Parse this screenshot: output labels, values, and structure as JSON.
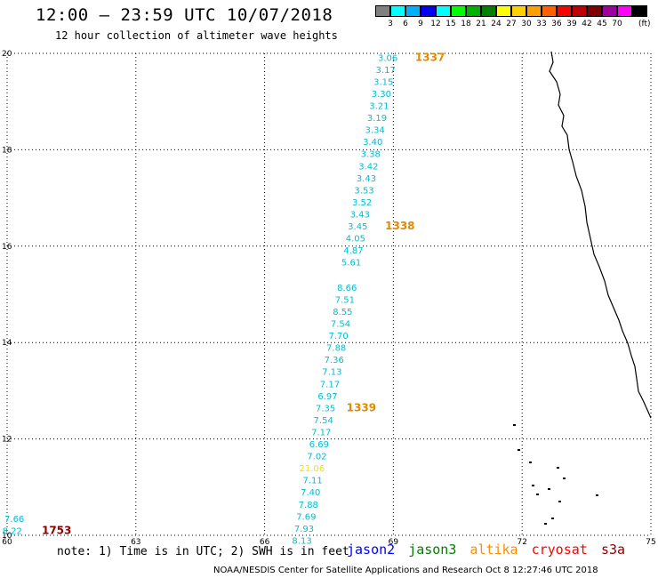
{
  "header": {
    "title": "12:00 – 23:59 UTC 10/07/2018",
    "subtitle": "12 hour collection of altimeter wave heights"
  },
  "legend": {
    "colors": [
      "#808080",
      "#00ffff",
      "#00b0ff",
      "#0000ff",
      "#00ffff",
      "#00ff00",
      "#00b000",
      "#008000",
      "#ffff00",
      "#ffd000",
      "#ffa000",
      "#ff6000",
      "#ff0000",
      "#c00000",
      "#800000",
      "#a000a0",
      "#ff00ff",
      "#000000"
    ],
    "labels": [
      "3",
      "6",
      "9",
      "12",
      "15",
      "18",
      "21",
      "24",
      "27",
      "30",
      "33",
      "36",
      "39",
      "42",
      "45",
      "70"
    ],
    "unit": "(ft)"
  },
  "map": {
    "lon_min": 60,
    "lon_max": 75,
    "lat_min": 10,
    "lat_max": 20,
    "x_ticks": [
      60,
      63,
      66,
      69,
      72,
      75
    ],
    "y_ticks": [
      10,
      12,
      14,
      16,
      18,
      20
    ],
    "colors": {
      "cyan": "#00bcd4",
      "yellow": "#e8e800",
      "orange": "#e08a00",
      "darkred": "#8b0000",
      "grid": "#000000",
      "coast": "#000000"
    }
  },
  "observations": [
    {
      "lat": 19.92,
      "lon": 69.1,
      "value": "3.06",
      "color": "cyan"
    },
    {
      "lat": 19.67,
      "lon": 69.05,
      "value": "3.17",
      "color": "cyan"
    },
    {
      "lat": 19.42,
      "lon": 69.0,
      "value": "3.15",
      "color": "cyan"
    },
    {
      "lat": 19.17,
      "lon": 68.95,
      "value": "3.30",
      "color": "cyan"
    },
    {
      "lat": 18.92,
      "lon": 68.9,
      "value": "3.21",
      "color": "cyan"
    },
    {
      "lat": 18.67,
      "lon": 68.85,
      "value": "3.19",
      "color": "cyan"
    },
    {
      "lat": 18.42,
      "lon": 68.8,
      "value": "3.34",
      "color": "cyan"
    },
    {
      "lat": 18.17,
      "lon": 68.75,
      "value": "3.40",
      "color": "cyan"
    },
    {
      "lat": 17.92,
      "lon": 68.7,
      "value": "3.38",
      "color": "cyan"
    },
    {
      "lat": 17.67,
      "lon": 68.65,
      "value": "3.42",
      "color": "cyan"
    },
    {
      "lat": 17.42,
      "lon": 68.6,
      "value": "3.43",
      "color": "cyan"
    },
    {
      "lat": 17.17,
      "lon": 68.55,
      "value": "3.53",
      "color": "cyan"
    },
    {
      "lat": 16.92,
      "lon": 68.5,
      "value": "3.52",
      "color": "cyan"
    },
    {
      "lat": 16.67,
      "lon": 68.45,
      "value": "3.43",
      "color": "cyan"
    },
    {
      "lat": 16.42,
      "lon": 68.4,
      "value": "3.45",
      "color": "cyan"
    },
    {
      "lat": 16.17,
      "lon": 68.35,
      "value": "4.05",
      "color": "cyan"
    },
    {
      "lat": 15.92,
      "lon": 68.3,
      "value": "4.87",
      "color": "cyan"
    },
    {
      "lat": 15.67,
      "lon": 68.25,
      "value": "5.61",
      "color": "cyan"
    },
    {
      "lat": 15.15,
      "lon": 68.15,
      "value": "8.66",
      "color": "cyan"
    },
    {
      "lat": 14.9,
      "lon": 68.1,
      "value": "7.51",
      "color": "cyan"
    },
    {
      "lat": 14.65,
      "lon": 68.05,
      "value": "8.55",
      "color": "cyan"
    },
    {
      "lat": 14.4,
      "lon": 68.0,
      "value": "7.54",
      "color": "cyan"
    },
    {
      "lat": 14.15,
      "lon": 67.95,
      "value": "7.70",
      "color": "cyan"
    },
    {
      "lat": 13.9,
      "lon": 67.9,
      "value": "7.88",
      "color": "cyan"
    },
    {
      "lat": 13.65,
      "lon": 67.85,
      "value": "7.36",
      "color": "cyan"
    },
    {
      "lat": 13.4,
      "lon": 67.8,
      "value": "7.13",
      "color": "cyan"
    },
    {
      "lat": 13.15,
      "lon": 67.75,
      "value": "7.17",
      "color": "cyan"
    },
    {
      "lat": 12.9,
      "lon": 67.7,
      "value": "6.97",
      "color": "cyan"
    },
    {
      "lat": 12.65,
      "lon": 67.65,
      "value": "7.35",
      "color": "cyan"
    },
    {
      "lat": 12.4,
      "lon": 67.6,
      "value": "7.54",
      "color": "cyan"
    },
    {
      "lat": 12.15,
      "lon": 67.55,
      "value": "7.17",
      "color": "cyan"
    },
    {
      "lat": 11.9,
      "lon": 67.5,
      "value": "6.69",
      "color": "cyan"
    },
    {
      "lat": 11.65,
      "lon": 67.45,
      "value": "7.02",
      "color": "cyan"
    },
    {
      "lat": 11.4,
      "lon": 67.4,
      "value": "21.06",
      "color": "yellow"
    },
    {
      "lat": 11.15,
      "lon": 67.35,
      "value": "7.11",
      "color": "cyan"
    },
    {
      "lat": 10.9,
      "lon": 67.3,
      "value": "7.40",
      "color": "cyan"
    },
    {
      "lat": 10.65,
      "lon": 67.25,
      "value": "7.88",
      "color": "cyan"
    },
    {
      "lat": 10.4,
      "lon": 67.2,
      "value": "7.69",
      "color": "cyan"
    },
    {
      "lat": 10.15,
      "lon": 67.15,
      "value": "7.93",
      "color": "cyan"
    },
    {
      "lat": 9.9,
      "lon": 67.1,
      "value": "8.13",
      "color": "cyan"
    },
    {
      "lat": 10.35,
      "lon": 60.4,
      "value": "7.66",
      "color": "cyan"
    },
    {
      "lat": 10.1,
      "lon": 60.35,
      "value": "8.22",
      "color": "cyan"
    }
  ],
  "passes": [
    {
      "lat": 19.92,
      "lon": 70.2,
      "label": "1337",
      "color": "orange"
    },
    {
      "lat": 16.42,
      "lon": 69.5,
      "label": "1338",
      "color": "orange"
    },
    {
      "lat": 12.65,
      "lon": 68.6,
      "label": "1339",
      "color": "orange"
    },
    {
      "lat": 10.1,
      "lon": 61.5,
      "label": "1753",
      "color": "darkred"
    }
  ],
  "footer": {
    "notes": "note: 1) Time is in UTC; 2) SWH is in feet",
    "satellites": [
      {
        "name": "jason2",
        "color": "#0000ff"
      },
      {
        "name": "jason3",
        "color": "#008000"
      },
      {
        "name": "altika",
        "color": "#ff8c00"
      },
      {
        "name": "cryosat",
        "color": "#ff0000"
      },
      {
        "name": "s3a",
        "color": "#8b0000"
      }
    ],
    "credit": "NOAA/NESDIS Center for Satellite Applications and Research   Oct  8 12:27:46 UTC 2018"
  }
}
